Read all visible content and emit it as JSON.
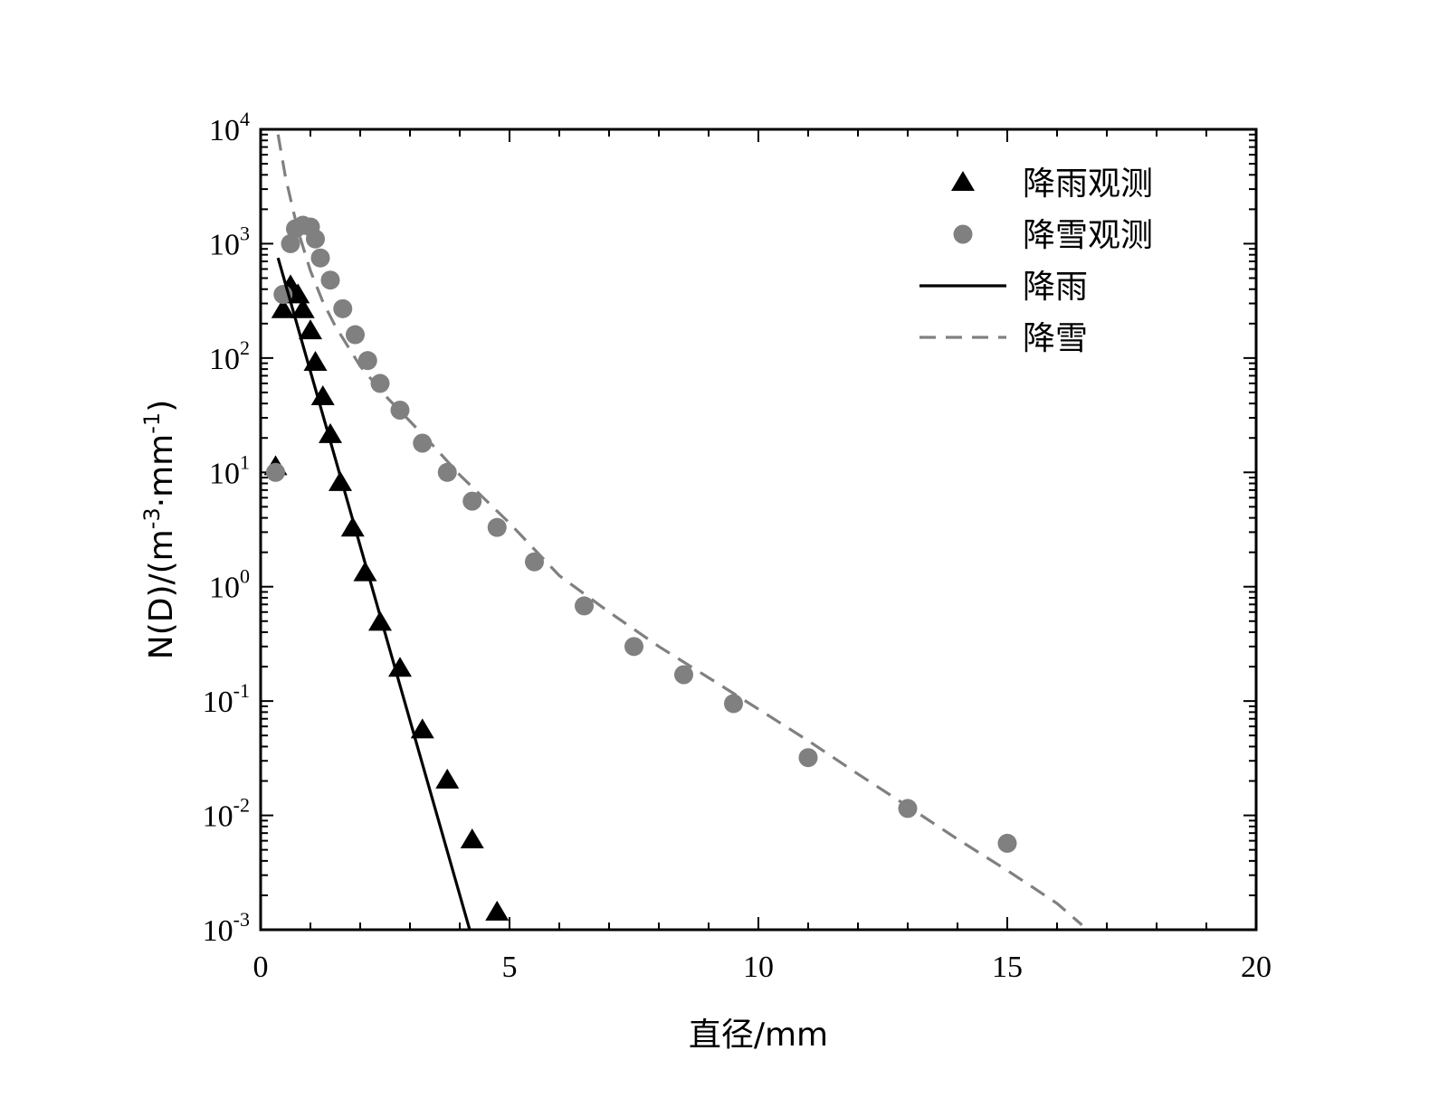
{
  "chart_data": {
    "type": "scatter",
    "xlabel": "直径/mm",
    "ylabel": {
      "base": "N(D)/(m",
      "exp1": "-3",
      "mid": "·mm",
      "exp2": "-1",
      "end": ")"
    },
    "xlim": [
      0,
      20
    ],
    "ylim": [
      0.001,
      10000
    ],
    "y_scale": "log",
    "x_ticks": [
      0,
      5,
      10,
      15,
      20
    ],
    "x_tick_labels": [
      "0",
      "5",
      "10",
      "15",
      "20"
    ],
    "y_ticks": [
      {
        "value": 0.001,
        "base": "10",
        "exp": "-3"
      },
      {
        "value": 0.01,
        "base": "10",
        "exp": "-2"
      },
      {
        "value": 0.1,
        "base": "10",
        "exp": "-1"
      },
      {
        "value": 1,
        "base": "10",
        "exp": "0"
      },
      {
        "value": 10,
        "base": "10",
        "exp": "1"
      },
      {
        "value": 100,
        "base": "10",
        "exp": "2"
      },
      {
        "value": 1000,
        "base": "10",
        "exp": "3"
      },
      {
        "value": 10000,
        "base": "10",
        "exp": "4"
      }
    ],
    "legend_position": "top-right",
    "series": [
      {
        "name": "降雨观测",
        "kind": "scatter",
        "marker": "triangle",
        "color": "#000000",
        "x": [
          0.3,
          0.45,
          0.6,
          0.75,
          0.85,
          1.0,
          1.1,
          1.25,
          1.4,
          1.6,
          1.85,
          2.1,
          2.4,
          2.8,
          3.25,
          3.75,
          4.25,
          4.75
        ],
        "y": [
          11,
          260,
          420,
          350,
          260,
          170,
          90,
          45,
          21,
          8,
          3.2,
          1.3,
          0.48,
          0.19,
          0.055,
          0.02,
          0.006,
          0.0014
        ]
      },
      {
        "name": "降雪观测",
        "kind": "scatter",
        "marker": "circle",
        "color": "#808080",
        "x": [
          0.3,
          0.45,
          0.6,
          0.7,
          0.85,
          1.0,
          1.1,
          1.2,
          1.4,
          1.65,
          1.9,
          2.15,
          2.4,
          2.8,
          3.25,
          3.75,
          4.25,
          4.75,
          5.5,
          6.5,
          7.5,
          8.5,
          9.5,
          11,
          13,
          15
        ],
        "y": [
          10,
          360,
          1000,
          1350,
          1450,
          1400,
          1100,
          750,
          480,
          270,
          160,
          95,
          60,
          35,
          18,
          10,
          5.6,
          3.3,
          1.65,
          0.68,
          0.3,
          0.17,
          0.095,
          0.032,
          0.0115,
          0.0057
        ]
      },
      {
        "name": "降雨",
        "kind": "line",
        "style": "solid",
        "color": "#000000",
        "x": [
          0.35,
          4.2
        ],
        "y": [
          750,
          0.001
        ]
      },
      {
        "name": "降雪",
        "kind": "line",
        "style": "dashed",
        "color": "#808080",
        "x": [
          0.35,
          0.5,
          0.75,
          1.0,
          1.25,
          1.5,
          2.0,
          2.5,
          3.0,
          3.5,
          4.0,
          5.0,
          6.0,
          7.0,
          8.0,
          9.0,
          10.0,
          11.0,
          12.0,
          13.0,
          14.0,
          15.0,
          16.0,
          16.5
        ],
        "y": [
          9000,
          3800,
          1300,
          580,
          310,
          190,
          85,
          47,
          28,
          16.5,
          9.5,
          3.6,
          1.25,
          0.6,
          0.3,
          0.16,
          0.085,
          0.045,
          0.023,
          0.012,
          0.0062,
          0.0033,
          0.0017,
          0.0011
        ]
      }
    ]
  }
}
